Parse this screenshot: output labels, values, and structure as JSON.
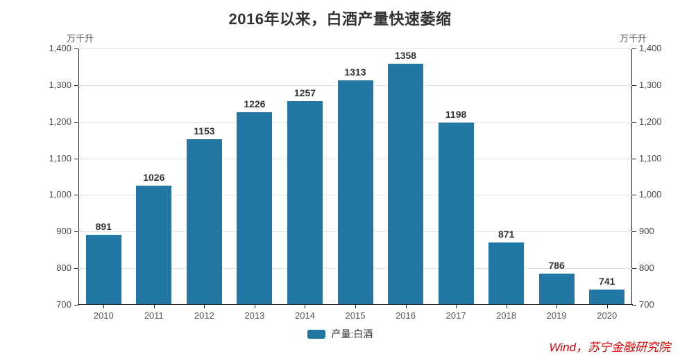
{
  "header": {
    "title": "2016年以来，白酒产量快速萎缩"
  },
  "axes": {
    "left_unit": "万千升",
    "right_unit": "万千升"
  },
  "legend": {
    "items": [
      {
        "label": "产量:白酒",
        "color": "#2377a4"
      }
    ]
  },
  "footer": {
    "source": "Wind，苏宁金融研究院"
  },
  "colors": {
    "bar": "#2377a4",
    "title": "#333333",
    "axis_line": "#222222",
    "gridline": "#e4e4e4",
    "tick_label": "#4a4a4a",
    "category_label": "#555555",
    "data_label": "#333333",
    "source_text": "#e60000",
    "background": "#ffffff"
  },
  "chart_data": {
    "type": "bar",
    "title": "2016年以来，白酒产量快速萎缩",
    "unit": "万千升",
    "categories": [
      "2010",
      "2011",
      "2012",
      "2013",
      "2014",
      "2015",
      "2016",
      "2017",
      "2018",
      "2019",
      "2020"
    ],
    "series": [
      {
        "name": "产量:白酒",
        "color": "#2377a4",
        "values": [
          891,
          1026,
          1153,
          1226,
          1257,
          1313,
          1358,
          1198,
          871,
          786,
          741
        ]
      }
    ],
    "xlabel": "",
    "ylabel": "万千升",
    "ylim": [
      700,
      1400
    ],
    "ytick_step": 100,
    "ytick_labels": [
      "700",
      "800",
      "900",
      "1,000",
      "1,100",
      "1,200",
      "1,300",
      "1,400"
    ],
    "grid": true,
    "dual_y_axis": true,
    "data_labels": true,
    "legend_position": "bottom",
    "source": "Wind，苏宁金融研究院"
  }
}
